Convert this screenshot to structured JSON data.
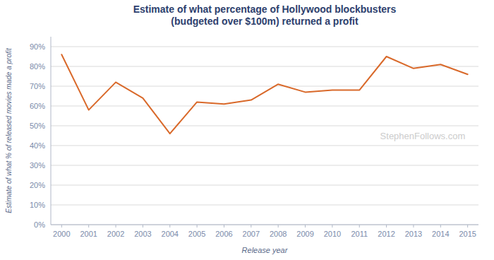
{
  "chart_data": {
    "type": "line",
    "title": "Estimate of what percentage of Hollywood blockbusters\n(budgeted over $100m) returned a profit",
    "x_label": "Release year",
    "y_label": "Estimate of what % of released movies made a profit",
    "annotations": [
      "StephenFollows.com"
    ],
    "x": [
      2000,
      2001,
      2002,
      2003,
      2004,
      2005,
      2006,
      2007,
      2008,
      2009,
      2010,
      2011,
      2012,
      2013,
      2014,
      2015
    ],
    "values": [
      0.86,
      0.58,
      0.72,
      0.64,
      0.46,
      0.62,
      0.61,
      0.63,
      0.71,
      0.67,
      0.68,
      0.68,
      0.85,
      0.79,
      0.81,
      0.76
    ],
    "color": "#d9692a",
    "xlim": [
      1999.6,
      2015.4
    ],
    "xticks": [
      2000,
      2001,
      2002,
      2003,
      2004,
      2005,
      2006,
      2007,
      2008,
      2009,
      2010,
      2011,
      2012,
      2013,
      2014,
      2015
    ],
    "ylim": [
      0,
      0.95
    ],
    "yticks": [
      {
        "value": 0.0,
        "label": "0%"
      },
      {
        "value": 0.1,
        "label": "10%"
      },
      {
        "value": 0.2,
        "label": "20%"
      },
      {
        "value": 0.3,
        "label": "30%"
      },
      {
        "value": 0.4,
        "label": "40%"
      },
      {
        "value": 0.5,
        "label": "50%"
      },
      {
        "value": 0.6,
        "label": "60%"
      },
      {
        "value": 0.7,
        "label": "70%"
      },
      {
        "value": 0.8,
        "label": "80%"
      },
      {
        "value": 0.9,
        "label": "90%"
      }
    ],
    "grid": true
  }
}
